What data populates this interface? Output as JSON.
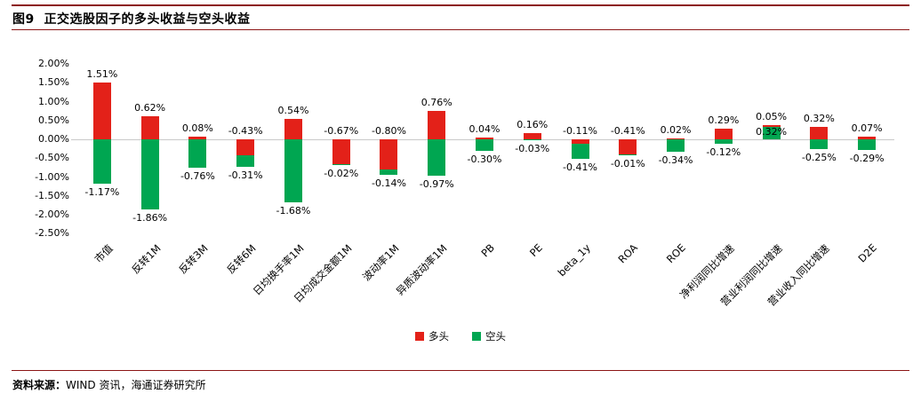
{
  "figure": {
    "title": "图9  正交选股因子的多头收益与空头收益",
    "source_label": "资料来源：",
    "source_text": "WIND 资讯，海通证券研究所",
    "rule_color": "#8c1515"
  },
  "chart_data": {
    "type": "bar",
    "stacked": true,
    "title": "正交选股因子的多头收益与空头收益",
    "categories": [
      "市值",
      "反转1M",
      "反转3M",
      "反转6M",
      "日均换手率1M",
      "日均成交金额1M",
      "波动率1M",
      "异质波动率1M",
      "PB",
      "PE",
      "beta_1y",
      "ROA",
      "ROE",
      "净利润同比增速",
      "营业利润同比增速",
      "营业收入同比增速",
      "D2E"
    ],
    "series": [
      {
        "name": "多头",
        "color": "#e32119",
        "values": [
          1.51,
          0.62,
          0.08,
          -0.43,
          0.54,
          -0.67,
          -0.8,
          0.76,
          0.04,
          0.16,
          -0.11,
          -0.41,
          0.02,
          0.29,
          0.05,
          0.32,
          0.07
        ]
      },
      {
        "name": "空头",
        "color": "#00a651",
        "values": [
          -1.17,
          -1.86,
          -0.76,
          -0.31,
          -1.68,
          -0.02,
          -0.14,
          -0.97,
          -0.3,
          -0.03,
          -0.41,
          -0.01,
          -0.34,
          -0.12,
          0.32,
          -0.25,
          -0.29
        ]
      }
    ],
    "xlabel": "",
    "ylabel": "",
    "ylim": [
      -2.5,
      2.0
    ],
    "y_ticks": [
      2.0,
      1.5,
      1.0,
      0.5,
      0.0,
      -0.5,
      -1.0,
      -1.5,
      -2.0,
      -2.5
    ],
    "y_tick_format": "0.00%",
    "value_label_format": "0.00%",
    "grid": "zero-line-only",
    "legend_position": "bottom-center",
    "legend": [
      "多头",
      "空头"
    ]
  }
}
